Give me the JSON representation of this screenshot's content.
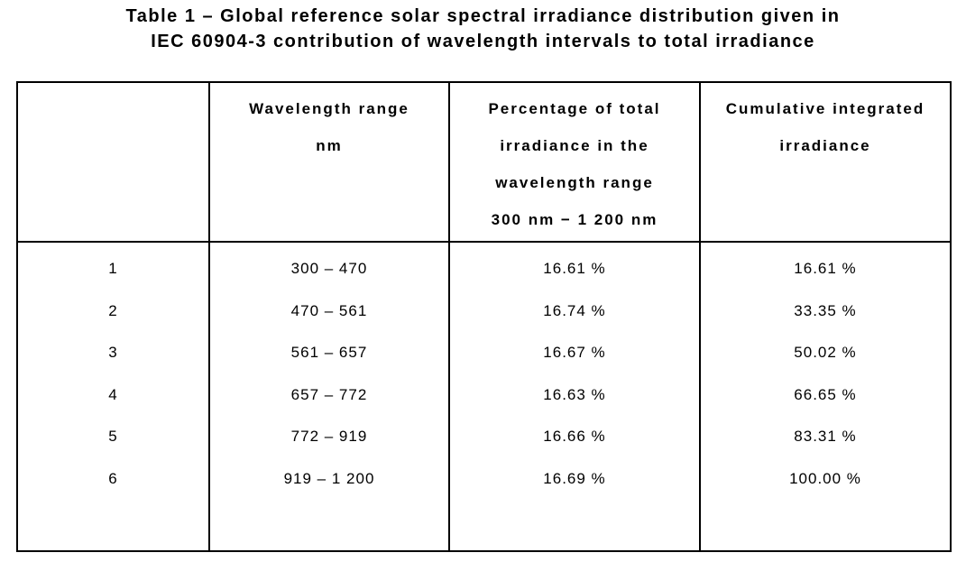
{
  "caption": {
    "line1": "Table 1 – Global reference solar spectral irradiance distribution given in",
    "line2": "IEC 60904-3 contribution of wavelength intervals to total irradiance"
  },
  "table": {
    "header": {
      "corner": "",
      "wavelength_range": [
        "Wavelength range",
        "nm"
      ],
      "percentage": [
        "Percentage of total",
        "irradiance in the",
        "wavelength range",
        "300 nm − 1 200 nm"
      ],
      "cumulative": [
        "Cumulative integrated",
        "irradiance"
      ]
    },
    "rows": [
      {
        "index": "1",
        "range": "300 – 470",
        "percentage": "16.61 %",
        "cumulative": "16.61 %"
      },
      {
        "index": "2",
        "range": "470 – 561",
        "percentage": "16.74 %",
        "cumulative": "33.35 %"
      },
      {
        "index": "3",
        "range": "561 – 657",
        "percentage": "16.67 %",
        "cumulative": "50.02 %"
      },
      {
        "index": "4",
        "range": "657 – 772",
        "percentage": "16.63 %",
        "cumulative": "66.65 %"
      },
      {
        "index": "5",
        "range": "772 – 919",
        "percentage": "16.66 %",
        "cumulative": "83.31 %"
      },
      {
        "index": "6",
        "range": "919 – 1 200",
        "percentage": "16.69 %",
        "cumulative": "100.00 %"
      }
    ]
  },
  "colors": {
    "text": "#000000",
    "border": "#000000",
    "background": "#ffffff"
  }
}
